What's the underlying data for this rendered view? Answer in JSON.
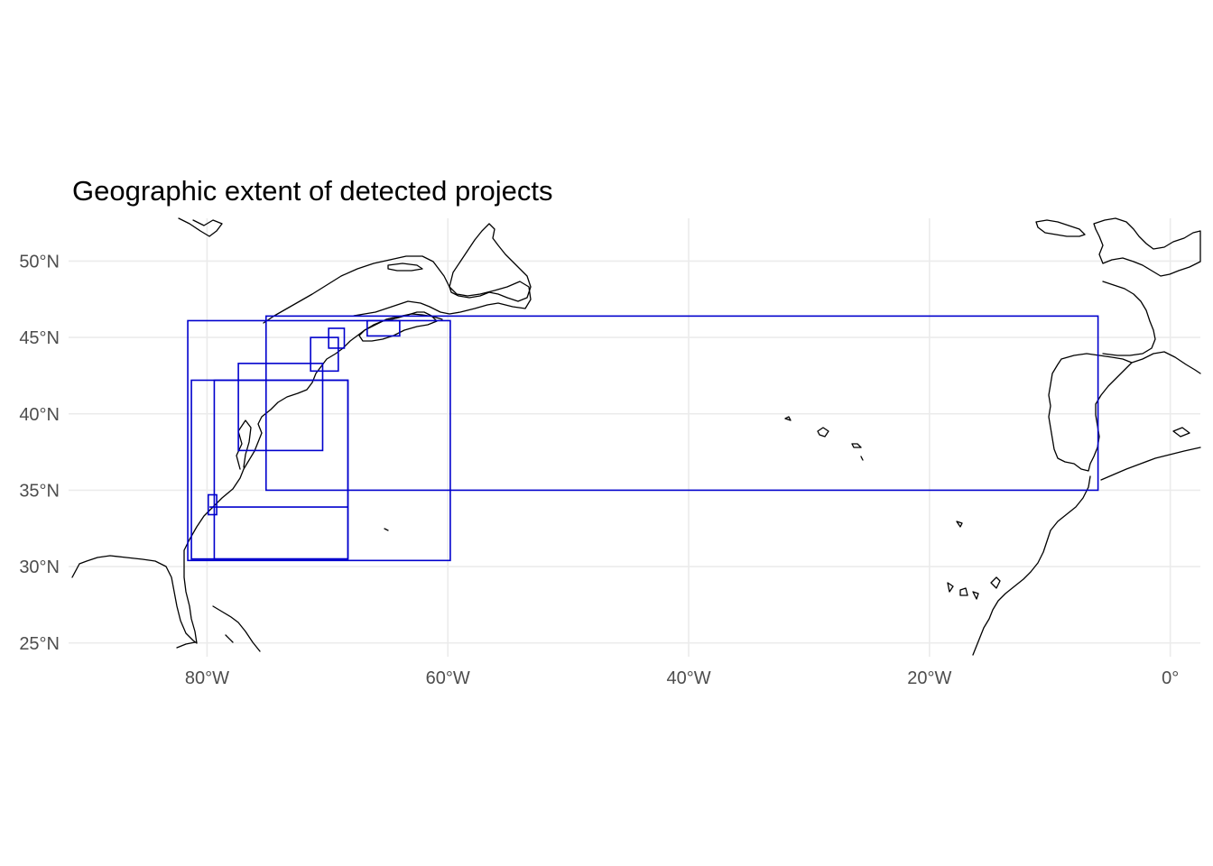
{
  "title": "Geographic extent of detected projects",
  "map": {
    "projection": "equirectangular",
    "lon_range": [
      -91.5,
      2.5
    ],
    "lat_range": [
      24.1,
      52.8
    ],
    "x_ticks": [
      {
        "value": -80,
        "label": "80°W"
      },
      {
        "value": -60,
        "label": "60°W"
      },
      {
        "value": -40,
        "label": "40°W"
      },
      {
        "value": -20,
        "label": "20°W"
      },
      {
        "value": 0,
        "label": "0°"
      }
    ],
    "y_ticks": [
      {
        "value": 25,
        "label": "25°N"
      },
      {
        "value": 30,
        "label": "30°N"
      },
      {
        "value": 35,
        "label": "35°N"
      },
      {
        "value": 40,
        "label": "40°N"
      },
      {
        "value": 45,
        "label": "45°N"
      },
      {
        "value": 50,
        "label": "50°N"
      }
    ],
    "grid": true,
    "coastline_color": "#000000",
    "box_color": "#0000cd",
    "extents": [
      {
        "lon": [
          -81.6,
          -59.8
        ],
        "lat": [
          30.4,
          46.1
        ]
      },
      {
        "lon": [
          -75.1,
          -6.0
        ],
        "lat": [
          35.0,
          46.4
        ]
      },
      {
        "lon": [
          -81.3,
          -68.3
        ],
        "lat": [
          30.5,
          42.2
        ]
      },
      {
        "lon": [
          -79.4,
          -68.3
        ],
        "lat": [
          30.5,
          42.2
        ]
      },
      {
        "lon": [
          -79.8,
          -68.3
        ],
        "lat": [
          33.9,
          33.9
        ]
      },
      {
        "lon": [
          -79.9,
          -79.2
        ],
        "lat": [
          33.4,
          34.7
        ]
      },
      {
        "lon": [
          -77.4,
          -70.4
        ],
        "lat": [
          37.6,
          43.3
        ]
      },
      {
        "lon": [
          -71.4,
          -69.1
        ],
        "lat": [
          42.8,
          45.0
        ]
      },
      {
        "lon": [
          -69.9,
          -68.6
        ],
        "lat": [
          44.3,
          45.6
        ]
      },
      {
        "lon": [
          -66.7,
          -64.0
        ],
        "lat": [
          45.1,
          46.1
        ]
      }
    ]
  }
}
